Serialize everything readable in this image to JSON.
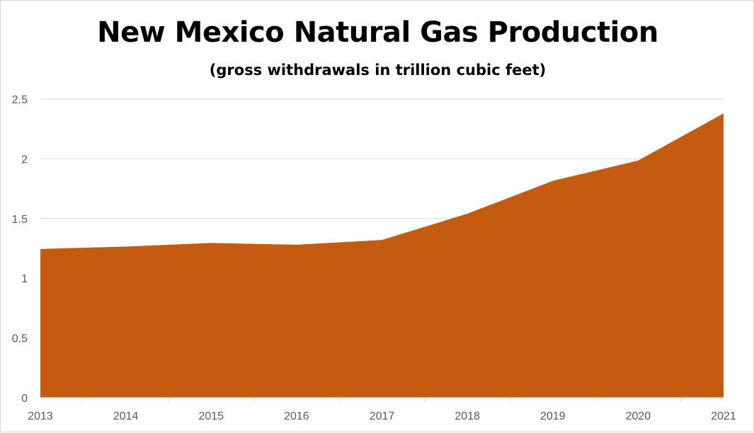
{
  "chart_data": {
    "type": "area",
    "title": "New Mexico Natural Gas Production",
    "subtitle": "(gross withdrawals in trillion cubic feet)",
    "xlabel": "",
    "ylabel": "",
    "x": [
      "2013",
      "2014",
      "2015",
      "2016",
      "2017",
      "2018",
      "2019",
      "2020",
      "2021"
    ],
    "series": [
      {
        "values": [
          1.245,
          1.265,
          1.295,
          1.28,
          1.32,
          1.54,
          1.815,
          1.985,
          2.38
        ]
      }
    ],
    "yticks": [
      "0",
      "0.5",
      "1",
      "1.5",
      "2",
      "2.5"
    ],
    "ylim": [
      0,
      2.5
    ],
    "grid": true,
    "legend": "none",
    "colors": {
      "fill": "#C55A11",
      "grid": "#d9d9d9",
      "axis": "#d9d9d9",
      "text": "#595959"
    }
  }
}
